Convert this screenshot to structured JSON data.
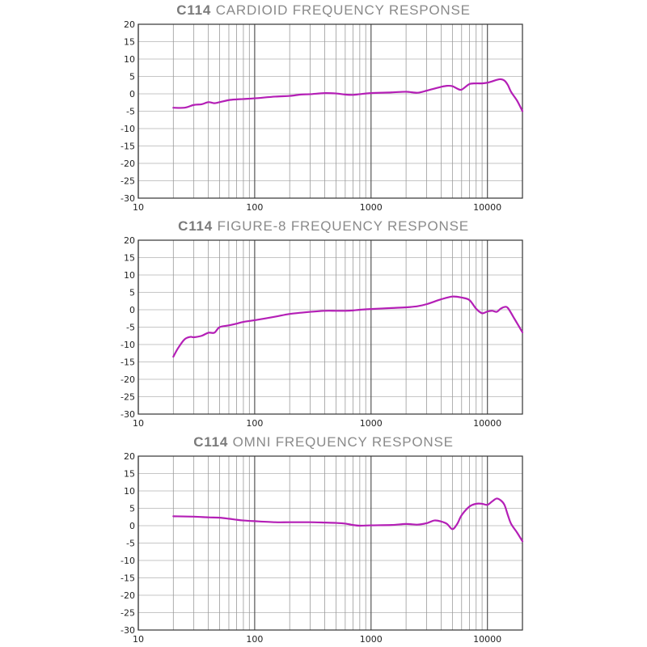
{
  "chart_data": [
    {
      "type": "line",
      "title_model": "C114",
      "title_text": "CARDIOID FREQUENCY RESPONSE",
      "x_scale": "log",
      "xlim": [
        10,
        20000
      ],
      "ylim": [
        -30,
        20
      ],
      "grid": true,
      "y_ticks": [
        20,
        15,
        10,
        5,
        0,
        -5,
        -10,
        -15,
        -20,
        -25,
        -30
      ],
      "x_tick_labels": [
        "10",
        "100",
        "1000",
        "10000"
      ],
      "line_color": "#b41fb6",
      "series": [
        {
          "x": [
            20,
            25,
            30,
            35,
            40,
            45,
            50,
            60,
            70,
            80,
            100,
            150,
            200,
            250,
            300,
            400,
            500,
            600,
            700,
            800,
            1000,
            1500,
            2000,
            2500,
            3000,
            3500,
            4000,
            4500,
            5000,
            5500,
            6000,
            7000,
            8000,
            9000,
            10000,
            11000,
            12000,
            13000,
            14000,
            15000,
            16000,
            18000,
            20000
          ],
          "y": [
            -4,
            -4,
            -3.2,
            -3,
            -2.4,
            -2.7,
            -2.4,
            -1.8,
            -1.6,
            -1.5,
            -1.3,
            -0.8,
            -0.6,
            -0.2,
            -0.1,
            0.2,
            0.1,
            -0.2,
            -0.3,
            -0.1,
            0.2,
            0.4,
            0.6,
            0.3,
            0.9,
            1.5,
            2.0,
            2.3,
            2.2,
            1.5,
            1.2,
            2.8,
            3.0,
            3.0,
            3.2,
            3.6,
            4.0,
            4.2,
            3.8,
            2.5,
            0.5,
            -2.0,
            -5.0
          ]
        }
      ]
    },
    {
      "type": "line",
      "title_model": "C114",
      "title_text": "FIGURE-8 FREQUENCY RESPONSE",
      "x_scale": "log",
      "xlim": [
        10,
        20000
      ],
      "ylim": [
        -30,
        20
      ],
      "grid": true,
      "y_ticks": [
        20,
        15,
        10,
        5,
        0,
        -5,
        -10,
        -15,
        -20,
        -25,
        -30
      ],
      "x_tick_labels": [
        "10",
        "100",
        "1000",
        "10000"
      ],
      "line_color": "#b41fb6",
      "series": [
        {
          "x": [
            20,
            22,
            25,
            28,
            30,
            35,
            40,
            45,
            50,
            60,
            70,
            80,
            100,
            150,
            200,
            300,
            400,
            500,
            600,
            700,
            800,
            1000,
            1500,
            2000,
            2500,
            3000,
            4000,
            5000,
            6000,
            7000,
            8000,
            9000,
            10000,
            11000,
            12000,
            13000,
            14000,
            15000,
            17000,
            20000
          ],
          "y": [
            -13.5,
            -11,
            -8.5,
            -7.8,
            -7.9,
            -7.5,
            -6.6,
            -6.6,
            -5,
            -4.5,
            -4,
            -3.5,
            -3,
            -2,
            -1.2,
            -0.6,
            -0.3,
            -0.3,
            -0.3,
            -0.2,
            0,
            0.2,
            0.5,
            0.7,
            1,
            1.6,
            3,
            3.8,
            3.5,
            2.8,
            0.3,
            -1,
            -0.5,
            -0.3,
            -0.6,
            0.3,
            0.8,
            0.5,
            -2.5,
            -6.5
          ]
        }
      ]
    },
    {
      "type": "line",
      "title_model": "C114",
      "title_text": "OMNI FREQUENCY RESPONSE",
      "x_scale": "log",
      "xlim": [
        10,
        20000
      ],
      "ylim": [
        -30,
        20
      ],
      "grid": true,
      "y_ticks": [
        20,
        15,
        10,
        5,
        0,
        -5,
        -10,
        -15,
        -20,
        -25,
        -30
      ],
      "x_tick_labels": [
        "10",
        "100",
        "1000",
        "10000"
      ],
      "line_color": "#b41fb6",
      "series": [
        {
          "x": [
            20,
            30,
            40,
            50,
            60,
            70,
            80,
            100,
            150,
            200,
            300,
            400,
            500,
            600,
            700,
            800,
            1000,
            1500,
            2000,
            2500,
            3000,
            3500,
            4000,
            4500,
            5000,
            5500,
            6000,
            7000,
            8000,
            9000,
            10000,
            11000,
            12000,
            13000,
            14000,
            15000,
            16000,
            18000,
            20000
          ],
          "y": [
            2.7,
            2.6,
            2.4,
            2.3,
            2.0,
            1.7,
            1.5,
            1.3,
            1.0,
            1.0,
            1.0,
            0.9,
            0.8,
            0.6,
            0.2,
            0.0,
            0.1,
            0.2,
            0.5,
            0.3,
            0.7,
            1.5,
            1.2,
            0.5,
            -1.0,
            0.5,
            3.0,
            5.5,
            6.3,
            6.3,
            6.0,
            7.0,
            7.8,
            7.3,
            6.0,
            3.0,
            0.5,
            -2.0,
            -4.5
          ]
        }
      ]
    }
  ]
}
